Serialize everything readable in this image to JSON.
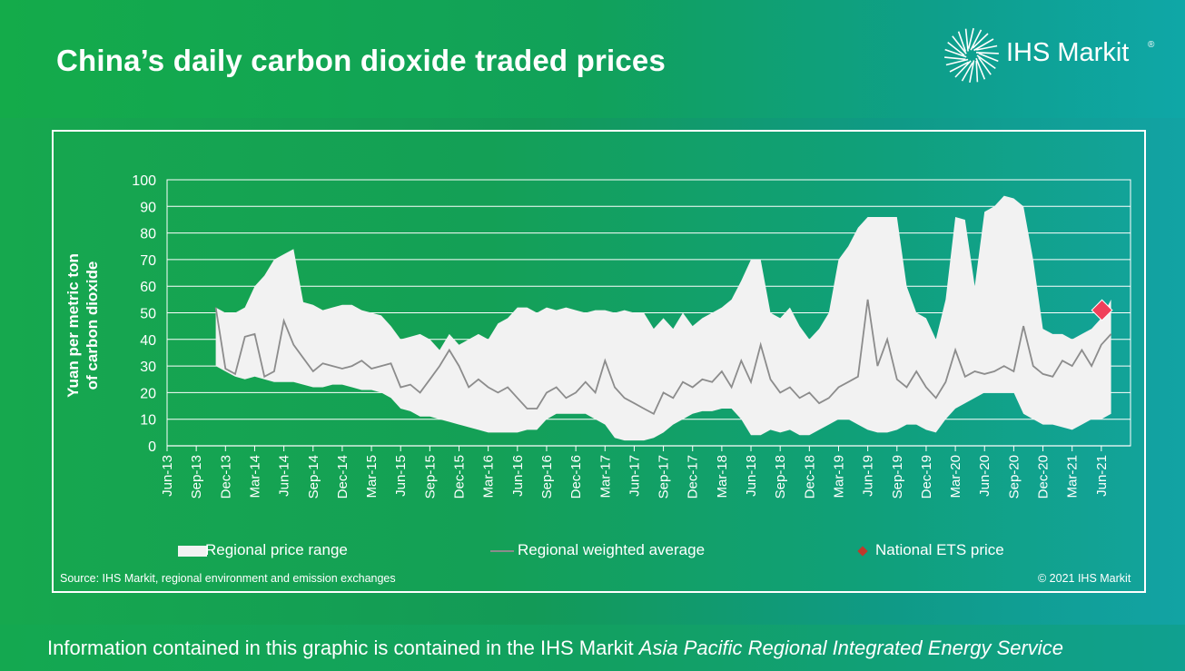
{
  "header": {
    "title": "China’s daily carbon dioxide traded prices",
    "logo_text": "IHS Markit",
    "logo_reg": "®"
  },
  "colors": {
    "range_fill": "#f2f2f2",
    "average_line": "#8c8c8c",
    "ets_marker": "#f0405a",
    "gridline": "#ffffff"
  },
  "chart_data": {
    "type": "area",
    "title": "China’s daily carbon dioxide traded prices",
    "ylabel": "Yuan per metric ton of carbon dioxide",
    "xlabel": "",
    "ylim": [
      0,
      100
    ],
    "yticks": [
      0,
      10,
      20,
      30,
      40,
      50,
      60,
      70,
      80,
      90,
      100
    ],
    "grid": true,
    "legend_position": "bottom",
    "x_tick_labels": [
      "Jun-13",
      "Sep-13",
      "Dec-13",
      "Mar-14",
      "Jun-14",
      "Sep-14",
      "Dec-14",
      "Mar-15",
      "Jun-15",
      "Sep-15",
      "Dec-15",
      "Mar-16",
      "Jun-16",
      "Sep-16",
      "Dec-16",
      "Mar-17",
      "Jun-17",
      "Sep-17",
      "Dec-17",
      "Mar-18",
      "Jun-18",
      "Sep-18",
      "Dec-18",
      "Mar-19",
      "Jun-19",
      "Sep-19",
      "Dec-19",
      "Mar-20",
      "Jun-20",
      "Sep-20",
      "Dec-20",
      "Mar-21",
      "Jun-21"
    ],
    "x_units": "months since Jun-13",
    "series": [
      {
        "name": "Regional price range",
        "kind": "band",
        "points": [
          {
            "x": "Nov-13",
            "low": 30,
            "high": 52
          },
          {
            "x": "Dec-13",
            "low": 28,
            "high": 50
          },
          {
            "x": "Jan-14",
            "low": 26,
            "high": 50
          },
          {
            "x": "Feb-14",
            "low": 25,
            "high": 52
          },
          {
            "x": "Mar-14",
            "low": 26,
            "high": 60
          },
          {
            "x": "Apr-14",
            "low": 25,
            "high": 64
          },
          {
            "x": "May-14",
            "low": 24,
            "high": 70
          },
          {
            "x": "Jun-14",
            "low": 24,
            "high": 72
          },
          {
            "x": "Jul-14",
            "low": 24,
            "high": 74
          },
          {
            "x": "Aug-14",
            "low": 23,
            "high": 54
          },
          {
            "x": "Sep-14",
            "low": 22,
            "high": 53
          },
          {
            "x": "Oct-14",
            "low": 22,
            "high": 51
          },
          {
            "x": "Nov-14",
            "low": 23,
            "high": 52
          },
          {
            "x": "Dec-14",
            "low": 23,
            "high": 53
          },
          {
            "x": "Jan-15",
            "low": 22,
            "high": 53
          },
          {
            "x": "Feb-15",
            "low": 21,
            "high": 51
          },
          {
            "x": "Mar-15",
            "low": 21,
            "high": 50
          },
          {
            "x": "Apr-15",
            "low": 20,
            "high": 49
          },
          {
            "x": "May-15",
            "low": 18,
            "high": 45
          },
          {
            "x": "Jun-15",
            "low": 14,
            "high": 40
          },
          {
            "x": "Jul-15",
            "low": 13,
            "high": 41
          },
          {
            "x": "Aug-15",
            "low": 11,
            "high": 42
          },
          {
            "x": "Sep-15",
            "low": 11,
            "high": 40
          },
          {
            "x": "Oct-15",
            "low": 10,
            "high": 36
          },
          {
            "x": "Nov-15",
            "low": 9,
            "high": 42
          },
          {
            "x": "Dec-15",
            "low": 8,
            "high": 38
          },
          {
            "x": "Jan-16",
            "low": 7,
            "high": 40
          },
          {
            "x": "Feb-16",
            "low": 6,
            "high": 42
          },
          {
            "x": "Mar-16",
            "low": 5,
            "high": 40
          },
          {
            "x": "Apr-16",
            "low": 5,
            "high": 46
          },
          {
            "x": "May-16",
            "low": 5,
            "high": 48
          },
          {
            "x": "Jun-16",
            "low": 5,
            "high": 52
          },
          {
            "x": "Jul-16",
            "low": 6,
            "high": 52
          },
          {
            "x": "Aug-16",
            "low": 6,
            "high": 50
          },
          {
            "x": "Sep-16",
            "low": 10,
            "high": 52
          },
          {
            "x": "Oct-16",
            "low": 12,
            "high": 51
          },
          {
            "x": "Nov-16",
            "low": 12,
            "high": 52
          },
          {
            "x": "Dec-16",
            "low": 12,
            "high": 51
          },
          {
            "x": "Jan-17",
            "low": 12,
            "high": 50
          },
          {
            "x": "Feb-17",
            "low": 10,
            "high": 51
          },
          {
            "x": "Mar-17",
            "low": 8,
            "high": 51
          },
          {
            "x": "Apr-17",
            "low": 3,
            "high": 50
          },
          {
            "x": "May-17",
            "low": 2,
            "high": 51
          },
          {
            "x": "Jun-17",
            "low": 2,
            "high": 50
          },
          {
            "x": "Jul-17",
            "low": 2,
            "high": 50
          },
          {
            "x": "Aug-17",
            "low": 3,
            "high": 44
          },
          {
            "x": "Sep-17",
            "low": 5,
            "high": 48
          },
          {
            "x": "Oct-17",
            "low": 8,
            "high": 44
          },
          {
            "x": "Nov-17",
            "low": 10,
            "high": 50
          },
          {
            "x": "Dec-17",
            "low": 12,
            "high": 45
          },
          {
            "x": "Jan-18",
            "low": 13,
            "high": 48
          },
          {
            "x": "Feb-18",
            "low": 13,
            "high": 50
          },
          {
            "x": "Mar-18",
            "low": 14,
            "high": 52
          },
          {
            "x": "Apr-18",
            "low": 14,
            "high": 55
          },
          {
            "x": "May-18",
            "low": 10,
            "high": 62
          },
          {
            "x": "Jun-18",
            "low": 4,
            "high": 70
          },
          {
            "x": "Jul-18",
            "low": 4,
            "high": 70
          },
          {
            "x": "Aug-18",
            "low": 6,
            "high": 50
          },
          {
            "x": "Sep-18",
            "low": 5,
            "high": 48
          },
          {
            "x": "Oct-18",
            "low": 6,
            "high": 52
          },
          {
            "x": "Nov-18",
            "low": 4,
            "high": 45
          },
          {
            "x": "Dec-18",
            "low": 4,
            "high": 40
          },
          {
            "x": "Jan-19",
            "low": 6,
            "high": 44
          },
          {
            "x": "Feb-19",
            "low": 8,
            "high": 50
          },
          {
            "x": "Mar-19",
            "low": 10,
            "high": 70
          },
          {
            "x": "Apr-19",
            "low": 10,
            "high": 75
          },
          {
            "x": "May-19",
            "low": 8,
            "high": 82
          },
          {
            "x": "Jun-19",
            "low": 6,
            "high": 86
          },
          {
            "x": "Jul-19",
            "low": 5,
            "high": 86
          },
          {
            "x": "Aug-19",
            "low": 5,
            "high": 86
          },
          {
            "x": "Sep-19",
            "low": 6,
            "high": 86
          },
          {
            "x": "Oct-19",
            "low": 8,
            "high": 60
          },
          {
            "x": "Nov-19",
            "low": 8,
            "high": 50
          },
          {
            "x": "Dec-19",
            "low": 6,
            "high": 48
          },
          {
            "x": "Jan-20",
            "low": 5,
            "high": 40
          },
          {
            "x": "Feb-20",
            "low": 10,
            "high": 55
          },
          {
            "x": "Mar-20",
            "low": 14,
            "high": 86
          },
          {
            "x": "Apr-20",
            "low": 16,
            "high": 85
          },
          {
            "x": "May-20",
            "low": 18,
            "high": 60
          },
          {
            "x": "Jun-20",
            "low": 20,
            "high": 88
          },
          {
            "x": "Jul-20",
            "low": 20,
            "high": 90
          },
          {
            "x": "Aug-20",
            "low": 20,
            "high": 94
          },
          {
            "x": "Sep-20",
            "low": 20,
            "high": 93
          },
          {
            "x": "Oct-20",
            "low": 12,
            "high": 90
          },
          {
            "x": "Nov-20",
            "low": 10,
            "high": 70
          },
          {
            "x": "Dec-20",
            "low": 8,
            "high": 44
          },
          {
            "x": "Jan-21",
            "low": 8,
            "high": 42
          },
          {
            "x": "Feb-21",
            "low": 7,
            "high": 42
          },
          {
            "x": "Mar-21",
            "low": 6,
            "high": 40
          },
          {
            "x": "Apr-21",
            "low": 8,
            "high": 42
          },
          {
            "x": "May-21",
            "low": 10,
            "high": 44
          },
          {
            "x": "Jun-21",
            "low": 10,
            "high": 48
          },
          {
            "x": "Jul-21",
            "low": 12,
            "high": 55
          }
        ]
      },
      {
        "name": "Regional weighted average",
        "kind": "line",
        "points": [
          {
            "x": "Nov-13",
            "y": 52
          },
          {
            "x": "Dec-13",
            "y": 29
          },
          {
            "x": "Jan-14",
            "y": 27
          },
          {
            "x": "Feb-14",
            "y": 41
          },
          {
            "x": "Mar-14",
            "y": 42
          },
          {
            "x": "Apr-14",
            "y": 26
          },
          {
            "x": "May-14",
            "y": 28
          },
          {
            "x": "Jun-14",
            "y": 47
          },
          {
            "x": "Jul-14",
            "y": 38
          },
          {
            "x": "Aug-14",
            "y": 33
          },
          {
            "x": "Sep-14",
            "y": 28
          },
          {
            "x": "Oct-14",
            "y": 31
          },
          {
            "x": "Nov-14",
            "y": 30
          },
          {
            "x": "Dec-14",
            "y": 29
          },
          {
            "x": "Jan-15",
            "y": 30
          },
          {
            "x": "Feb-15",
            "y": 32
          },
          {
            "x": "Mar-15",
            "y": 29
          },
          {
            "x": "Apr-15",
            "y": 30
          },
          {
            "x": "May-15",
            "y": 31
          },
          {
            "x": "Jun-15",
            "y": 22
          },
          {
            "x": "Jul-15",
            "y": 23
          },
          {
            "x": "Aug-15",
            "y": 20
          },
          {
            "x": "Sep-15",
            "y": 25
          },
          {
            "x": "Oct-15",
            "y": 30
          },
          {
            "x": "Nov-15",
            "y": 36
          },
          {
            "x": "Dec-15",
            "y": 30
          },
          {
            "x": "Jan-16",
            "y": 22
          },
          {
            "x": "Feb-16",
            "y": 25
          },
          {
            "x": "Mar-16",
            "y": 22
          },
          {
            "x": "Apr-16",
            "y": 20
          },
          {
            "x": "May-16",
            "y": 22
          },
          {
            "x": "Jun-16",
            "y": 18
          },
          {
            "x": "Jul-16",
            "y": 14
          },
          {
            "x": "Aug-16",
            "y": 14
          },
          {
            "x": "Sep-16",
            "y": 20
          },
          {
            "x": "Oct-16",
            "y": 22
          },
          {
            "x": "Nov-16",
            "y": 18
          },
          {
            "x": "Dec-16",
            "y": 20
          },
          {
            "x": "Jan-17",
            "y": 24
          },
          {
            "x": "Feb-17",
            "y": 20
          },
          {
            "x": "Mar-17",
            "y": 32
          },
          {
            "x": "Apr-17",
            "y": 22
          },
          {
            "x": "May-17",
            "y": 18
          },
          {
            "x": "Jun-17",
            "y": 16
          },
          {
            "x": "Jul-17",
            "y": 14
          },
          {
            "x": "Aug-17",
            "y": 12
          },
          {
            "x": "Sep-17",
            "y": 20
          },
          {
            "x": "Oct-17",
            "y": 18
          },
          {
            "x": "Nov-17",
            "y": 24
          },
          {
            "x": "Dec-17",
            "y": 22
          },
          {
            "x": "Jan-18",
            "y": 25
          },
          {
            "x": "Feb-18",
            "y": 24
          },
          {
            "x": "Mar-18",
            "y": 28
          },
          {
            "x": "Apr-18",
            "y": 22
          },
          {
            "x": "May-18",
            "y": 32
          },
          {
            "x": "Jun-18",
            "y": 24
          },
          {
            "x": "Jul-18",
            "y": 38
          },
          {
            "x": "Aug-18",
            "y": 25
          },
          {
            "x": "Sep-18",
            "y": 20
          },
          {
            "x": "Oct-18",
            "y": 22
          },
          {
            "x": "Nov-18",
            "y": 18
          },
          {
            "x": "Dec-18",
            "y": 20
          },
          {
            "x": "Jan-19",
            "y": 16
          },
          {
            "x": "Feb-19",
            "y": 18
          },
          {
            "x": "Mar-19",
            "y": 22
          },
          {
            "x": "Apr-19",
            "y": 24
          },
          {
            "x": "May-19",
            "y": 26
          },
          {
            "x": "Jun-19",
            "y": 55
          },
          {
            "x": "Jul-19",
            "y": 30
          },
          {
            "x": "Aug-19",
            "y": 40
          },
          {
            "x": "Sep-19",
            "y": 25
          },
          {
            "x": "Oct-19",
            "y": 22
          },
          {
            "x": "Nov-19",
            "y": 28
          },
          {
            "x": "Dec-19",
            "y": 22
          },
          {
            "x": "Jan-20",
            "y": 18
          },
          {
            "x": "Feb-20",
            "y": 24
          },
          {
            "x": "Mar-20",
            "y": 36
          },
          {
            "x": "Apr-20",
            "y": 26
          },
          {
            "x": "May-20",
            "y": 28
          },
          {
            "x": "Jun-20",
            "y": 27
          },
          {
            "x": "Jul-20",
            "y": 28
          },
          {
            "x": "Aug-20",
            "y": 30
          },
          {
            "x": "Sep-20",
            "y": 28
          },
          {
            "x": "Oct-20",
            "y": 45
          },
          {
            "x": "Nov-20",
            "y": 30
          },
          {
            "x": "Dec-20",
            "y": 27
          },
          {
            "x": "Jan-21",
            "y": 26
          },
          {
            "x": "Feb-21",
            "y": 32
          },
          {
            "x": "Mar-21",
            "y": 30
          },
          {
            "x": "Apr-21",
            "y": 36
          },
          {
            "x": "May-21",
            "y": 30
          },
          {
            "x": "Jun-21",
            "y": 38
          },
          {
            "x": "Jul-21",
            "y": 42
          }
        ]
      },
      {
        "name": "National ETS price",
        "kind": "marker",
        "points": [
          {
            "x": "Jul-21",
            "y": 51
          }
        ]
      }
    ],
    "annotations": {
      "source": "Source: IHS Markit, regional environment and emission exchanges",
      "copyright": "© 2021 IHS Markit"
    }
  },
  "legend": {
    "range_label": "Regional price range",
    "avg_label": "Regional weighted average",
    "ets_label": "National ETS price"
  },
  "footer": {
    "prefix": "Information contained in this graphic is contained in the IHS Markit ",
    "service": "Asia Pacific Regional Integrated Energy Service"
  }
}
